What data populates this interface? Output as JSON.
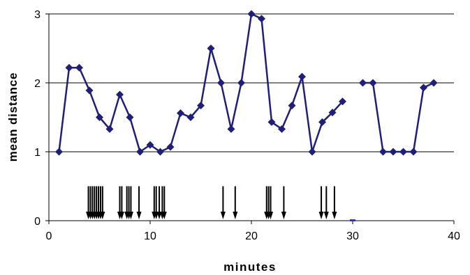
{
  "chart_data": {
    "type": "line",
    "title": "",
    "xlabel": "minutes",
    "ylabel": "mean distance",
    "xlim": [
      0,
      40
    ],
    "ylim": [
      0,
      3
    ],
    "x_ticks": [
      0,
      10,
      20,
      30,
      40
    ],
    "y_ticks": [
      0,
      1,
      2,
      3
    ],
    "horizontal_gridlines": [
      1,
      2,
      3
    ],
    "legend": "none",
    "series": [
      {
        "color": "#1F1F7A",
        "marker": "diamond",
        "segments": [
          [
            [
              1,
              1.0
            ],
            [
              2,
              2.22
            ],
            [
              3,
              2.22
            ],
            [
              4,
              1.89
            ],
            [
              5,
              1.5
            ],
            [
              6,
              1.33
            ],
            [
              7,
              1.83
            ],
            [
              8,
              1.5
            ],
            [
              9,
              1.0
            ],
            [
              10,
              1.1
            ],
            [
              11,
              1.0
            ],
            [
              12,
              1.07
            ],
            [
              13,
              1.56
            ],
            [
              14,
              1.5
            ],
            [
              15,
              1.67
            ],
            [
              16,
              2.5
            ],
            [
              17,
              2.0
            ],
            [
              18,
              1.33
            ],
            [
              19,
              2.0
            ],
            [
              20,
              3.0
            ],
            [
              21,
              2.93
            ],
            [
              22,
              1.43
            ],
            [
              23,
              1.33
            ],
            [
              24,
              1.67
            ],
            [
              25,
              2.09
            ],
            [
              26,
              1.0
            ],
            [
              27,
              1.43
            ],
            [
              28,
              1.57
            ],
            [
              29,
              1.73
            ]
          ],
          [
            [
              31,
              2.0
            ],
            [
              32,
              2.0
            ],
            [
              33,
              1.0
            ],
            [
              34,
              1.0
            ],
            [
              35,
              1.0
            ],
            [
              36,
              1.0
            ],
            [
              37,
              1.93
            ],
            [
              38,
              2.0
            ]
          ]
        ]
      }
    ],
    "event_markers": {
      "color": "#000000",
      "top_y": 0.5,
      "bottom_y": 0.0,
      "x": [
        3.9,
        4.1,
        4.3,
        4.5,
        4.7,
        4.9,
        5.1,
        5.3,
        7.0,
        7.2,
        7.7,
        7.9,
        8.1,
        8.9,
        10.4,
        10.6,
        10.9,
        11.2,
        11.4,
        17.2,
        18.4,
        21.5,
        21.7,
        21.9,
        23.2,
        26.9,
        27.4,
        28.2
      ]
    },
    "small_marker": {
      "x": 30.0,
      "y": 0.0,
      "color": "#2B3BA8"
    }
  }
}
